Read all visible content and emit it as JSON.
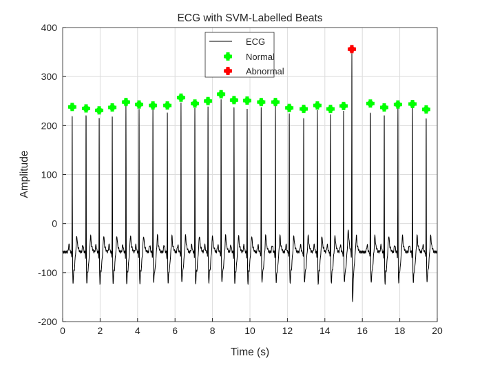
{
  "chart_data": {
    "type": "line",
    "title": "ECG with SVM-Labelled Beats",
    "xlabel": "Time (s)",
    "ylabel": "Amplitude",
    "xlim": [
      0,
      20
    ],
    "ylim": [
      -200,
      400
    ],
    "xticks": [
      "0",
      "2",
      "4",
      "6",
      "8",
      "10",
      "12",
      "14",
      "16",
      "18",
      "20"
    ],
    "yticks": [
      "-200",
      "-100",
      "0",
      "100",
      "200",
      "300",
      "400"
    ],
    "grid": true,
    "legend_position": "top-center",
    "series": [
      {
        "name": "ECG",
        "kind": "line",
        "color": "#000000"
      },
      {
        "name": "Normal",
        "kind": "marker",
        "color": "#00ff00",
        "points": [
          [
            0.51,
            238
          ],
          [
            1.25,
            235
          ],
          [
            1.95,
            231
          ],
          [
            2.65,
            237
          ],
          [
            3.38,
            248
          ],
          [
            4.08,
            243
          ],
          [
            4.82,
            241
          ],
          [
            5.59,
            241
          ],
          [
            6.32,
            257
          ],
          [
            7.06,
            245
          ],
          [
            7.76,
            250
          ],
          [
            8.46,
            264
          ],
          [
            9.15,
            252
          ],
          [
            9.85,
            251
          ],
          [
            10.6,
            248
          ],
          [
            11.36,
            248
          ],
          [
            12.1,
            236
          ],
          [
            12.87,
            234
          ],
          [
            13.6,
            241
          ],
          [
            14.3,
            234
          ],
          [
            15.0,
            240
          ],
          [
            16.43,
            245
          ],
          [
            17.17,
            237
          ],
          [
            17.9,
            243
          ],
          [
            18.68,
            244
          ],
          [
            19.41,
            233
          ]
        ]
      },
      {
        "name": "Abnormal",
        "kind": "marker",
        "color": "#ff0000",
        "points": [
          [
            15.44,
            356
          ]
        ]
      }
    ]
  }
}
